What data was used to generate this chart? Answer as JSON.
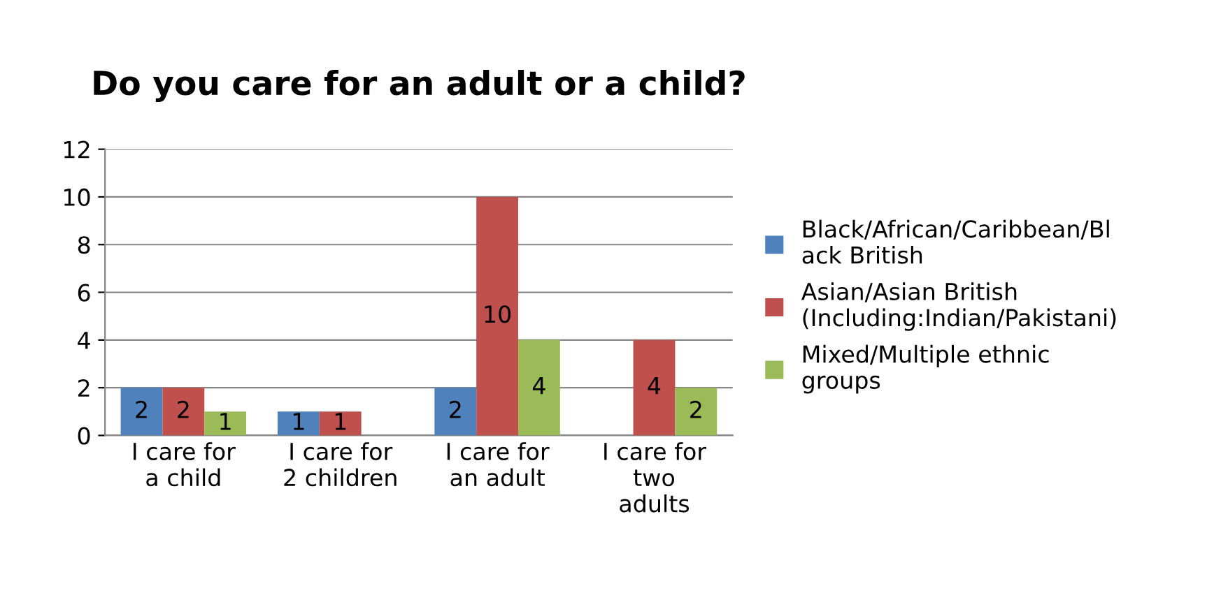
{
  "chart_data": {
    "type": "bar",
    "title": "Do you care for an adult or a child?",
    "categories": [
      "I care for\na child",
      "I care for\n2 children",
      "I care for\nan adult",
      "I care for\ntwo\nadults"
    ],
    "series": [
      {
        "name": "Black/African/Caribbean/Bl\nack British",
        "color": "#4f81bd",
        "values": [
          2,
          1,
          2,
          null
        ]
      },
      {
        "name": "Asian/Asian British\n(Including:Indian/Pakistani)",
        "color": "#c0504d",
        "values": [
          2,
          1,
          10,
          4
        ]
      },
      {
        "name": "Mixed/Multiple ethnic\ngroups",
        "color": "#9bbb59",
        "values": [
          1,
          null,
          4,
          2
        ]
      }
    ],
    "ylim": [
      0,
      12
    ],
    "yticks": [
      0,
      2,
      4,
      6,
      8,
      10,
      12
    ],
    "grid": "y",
    "legend": "right",
    "data_labels": true
  }
}
